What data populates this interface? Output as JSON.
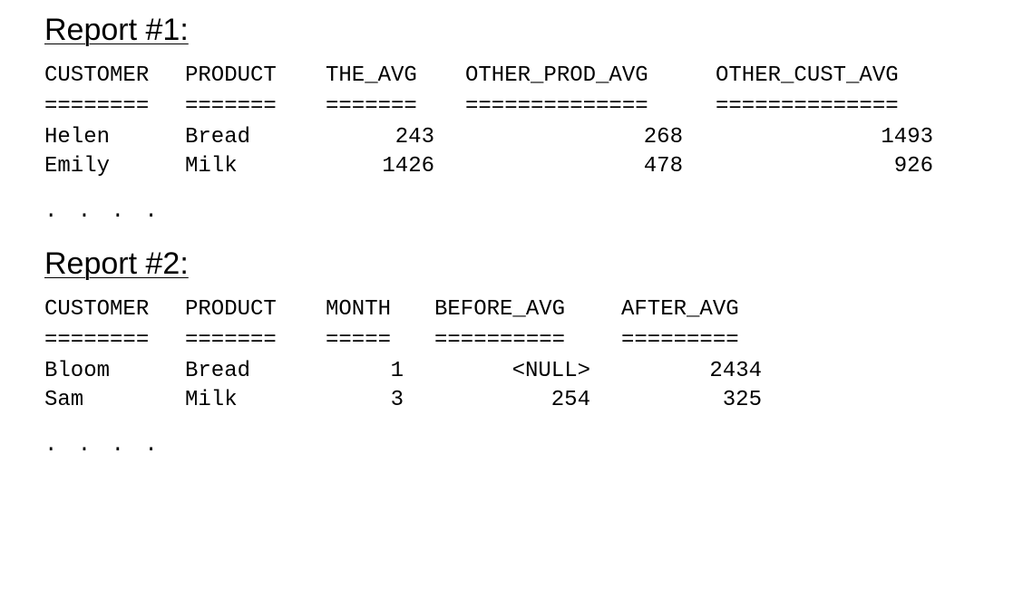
{
  "report1": {
    "title": "Report #1:",
    "columns": [
      "CUSTOMER",
      "PRODUCT",
      "THE_AVG",
      "OTHER_PROD_AVG",
      "OTHER_CUST_AVG"
    ],
    "underlines": [
      "========",
      "=======",
      "=======",
      "==============",
      "=============="
    ],
    "rows": [
      [
        "Helen",
        "Bread",
        "243",
        "268",
        "1493"
      ],
      [
        "Emily",
        "Milk",
        "1426",
        "478",
        "926"
      ]
    ],
    "ellipsis": ". . . ."
  },
  "report2": {
    "title": "Report #2:",
    "columns": [
      "CUSTOMER",
      "PRODUCT",
      "MONTH",
      "BEFORE_AVG",
      "AFTER_AVG"
    ],
    "underlines": [
      "========",
      "=======",
      "=====",
      "==========",
      "========="
    ],
    "rows": [
      [
        "Bloom",
        "Bread",
        "1",
        "<NULL>",
        "2434"
      ],
      [
        "Sam",
        "Milk",
        "3",
        "254",
        "325"
      ]
    ],
    "ellipsis": ". . . ."
  }
}
